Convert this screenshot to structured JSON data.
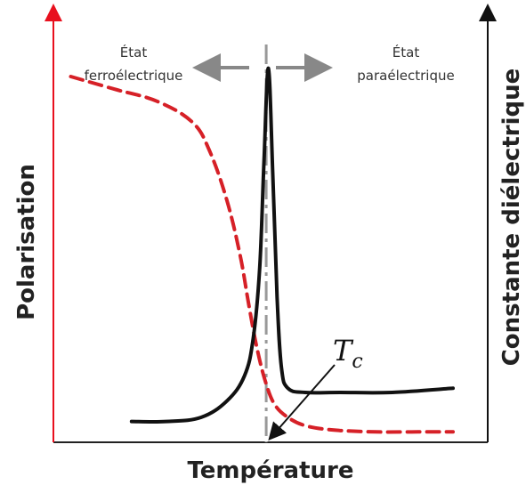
{
  "chart_data": {
    "type": "line",
    "xlabel": "Température",
    "ylabel_left": "Polarisation",
    "ylabel_right": "Constante diélectrique",
    "annotations": {
      "ferro_line1": "État",
      "ferro_line2": "ferroélectrique",
      "para_line1": "État",
      "para_line2": "paraélectrique",
      "tc_main": "T",
      "tc_sub": "c"
    },
    "xlim": [
      0,
      100
    ],
    "ylim": [
      0,
      100
    ],
    "tc_x": 49,
    "series": [
      {
        "color": "#d62027",
        "dash": "dashed",
        "axis": "left",
        "x": [
          4,
          14,
          24,
          32,
          36,
          40,
          43,
          45,
          47,
          49,
          51,
          54,
          58,
          64,
          74,
          84,
          92
        ],
        "y": [
          88,
          85,
          82,
          77,
          70,
          58,
          45,
          33,
          22,
          14,
          9,
          6,
          4,
          3,
          2.5,
          2.5,
          2.5
        ]
      },
      {
        "color": "#111111",
        "dash": "solid",
        "axis": "right",
        "x": [
          18,
          26,
          34,
          40,
          44,
          46,
          47.5,
          48.5,
          49.5,
          50.5,
          51.5,
          52.5,
          54,
          58,
          66,
          78,
          92
        ],
        "y": [
          5,
          5,
          6,
          10,
          16,
          25,
          42,
          68,
          90,
          65,
          35,
          18,
          13,
          12,
          12,
          12,
          13
        ]
      }
    ],
    "colors": {
      "left_axis": "#e8101e",
      "right_axis": "#111111",
      "tc_line": "#999999",
      "arrows": "#888888"
    }
  }
}
